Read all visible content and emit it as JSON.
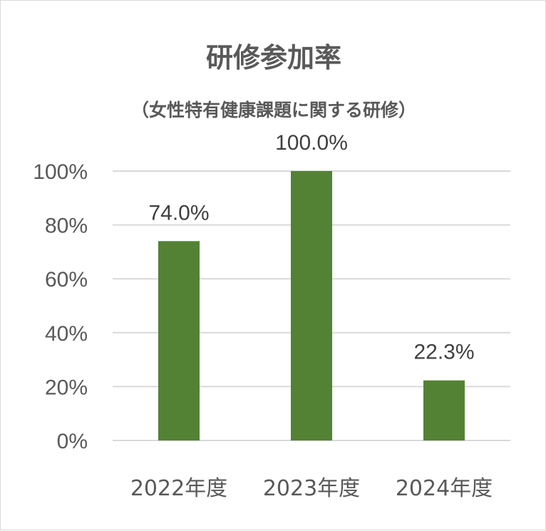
{
  "chart_data": {
    "type": "bar",
    "title": "研修参加率",
    "subtitle": "（女性特有健康課題に関する研修）",
    "categories": [
      "2022年度",
      "2023年度",
      "2024年度"
    ],
    "values": [
      74.0,
      100.0,
      22.3
    ],
    "data_labels": [
      "74.0%",
      "100.0%",
      "22.3%"
    ],
    "y_ticks": [
      "0%",
      "20%",
      "40%",
      "60%",
      "80%",
      "100%"
    ],
    "ylim": [
      0,
      100
    ],
    "grid": true,
    "bar_color": "#548235"
  }
}
